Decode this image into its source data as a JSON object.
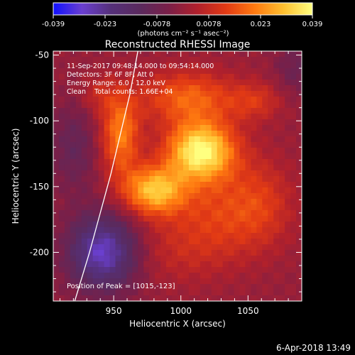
{
  "colors": {
    "background": "#000000",
    "foreground": "#ffffff",
    "colormap": [
      "#1010ff",
      "#6a3fd0",
      "#55307a",
      "#5a2a5e",
      "#7a1f48",
      "#b0202c",
      "#e23a14",
      "#ff7a10",
      "#ffc030",
      "#ffff80"
    ]
  },
  "colorbar": {
    "tick_labels": [
      "-0.039",
      "-0.023",
      "-0.0078",
      "0.0078",
      "0.023",
      "0.039"
    ],
    "units": "(photons cm⁻² s⁻¹ asec⁻²)"
  },
  "chart_data": {
    "type": "heatmap",
    "title": "Reconstructed RHESSI Image",
    "xlabel": "Heliocentric X (arcsec)",
    "ylabel": "Heliocentric Y (arcsec)",
    "xlim": [
      905,
      1090
    ],
    "ylim": [
      -237,
      -47
    ],
    "x_ticks": [
      950,
      1000,
      1050
    ],
    "y_ticks": [
      -50,
      -100,
      -150,
      -200
    ],
    "value_range": [
      -0.039,
      0.039
    ],
    "sources": [
      {
        "x": 1015,
        "y": -123,
        "peak": 0.039,
        "sx": 18,
        "sy": 16
      },
      {
        "x": 980,
        "y": -153,
        "peak": 0.03,
        "sx": 16,
        "sy": 13
      },
      {
        "x": 955,
        "y": -110,
        "peak": 0.022,
        "sx": 10,
        "sy": 22
      },
      {
        "x": 1005,
        "y": -82,
        "peak": 0.018,
        "sx": 25,
        "sy": 14
      },
      {
        "x": 1055,
        "y": -85,
        "peak": 0.01,
        "sx": 14,
        "sy": 10
      },
      {
        "x": 1030,
        "y": -170,
        "peak": 0.012,
        "sx": 28,
        "sy": 22
      },
      {
        "x": 1060,
        "y": -160,
        "peak": 0.008,
        "sx": 16,
        "sy": 24
      },
      {
        "x": 1000,
        "y": -200,
        "peak": 0.006,
        "sx": 30,
        "sy": 18
      },
      {
        "x": 938,
        "y": -80,
        "peak": 0.007,
        "sx": 10,
        "sy": 10
      },
      {
        "x": 942,
        "y": -200,
        "peak": -0.03,
        "sx": 18,
        "sy": 20
      },
      {
        "x": 920,
        "y": -120,
        "peak": -0.01,
        "sx": 12,
        "sy": 24
      },
      {
        "x": 1085,
        "y": -60,
        "peak": -0.008,
        "sx": 10,
        "sy": 14
      }
    ],
    "limb_curve": [
      [
        968,
        -47
      ],
      [
        962,
        -80
      ],
      [
        955,
        -110
      ],
      [
        948,
        -140
      ],
      [
        940,
        -170
      ],
      [
        932,
        -200
      ],
      [
        921,
        -237
      ]
    ],
    "annotations": [
      "11-Sep-2017 09:48:14.000 to 09:54:14.000",
      "Detectors: 3F 6F 8F, Att 0",
      "Energy Range: 6.0 - 12.0 keV",
      "Clean    Total counts: 1.66E+04"
    ],
    "peak_label": "Position of Peak = [1015,-123]",
    "footer_date": "6-Apr-2018 13:49"
  }
}
